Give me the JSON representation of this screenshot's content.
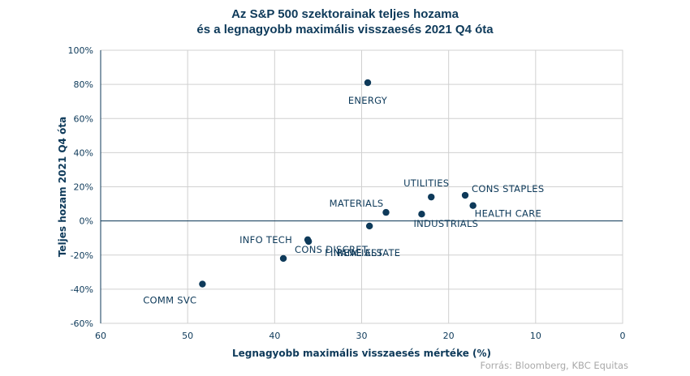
{
  "chart_data": {
    "type": "scatter",
    "title": "Az S&P 500 szektorainak teljes hozama",
    "subtitle": "és a legnagyobb maximális visszaesés 2021 Q4 óta",
    "xlabel": "Legnagyobb maximális visszaesés mértéke  (%)",
    "ylabel": "Teljes hozam 2021 Q4 óta",
    "xlim": [
      60,
      0
    ],
    "ylim": [
      -60,
      100
    ],
    "x_reversed": true,
    "grid": true,
    "x_ticks": [
      "60",
      "50",
      "40",
      "30",
      "20",
      "10",
      "0"
    ],
    "y_ticks": [
      "100%",
      "80%",
      "60%",
      "40%",
      "20%",
      "0%",
      "-20%",
      "-40%",
      "-60%"
    ],
    "marker_color": "#0e3a5a",
    "points": [
      {
        "label": "ENERGY",
        "x": 29.3,
        "y": 81
      },
      {
        "label": "UTILITIES",
        "x": 22.0,
        "y": 14
      },
      {
        "label": "CONS STAPLES",
        "x": 18.1,
        "y": 15
      },
      {
        "label": "MATERIALS",
        "x": 27.2,
        "y": 5
      },
      {
        "label": "INDUSTRIALS",
        "x": 23.1,
        "y": 4
      },
      {
        "label": "HEALTH CARE",
        "x": 17.2,
        "y": 9
      },
      {
        "label": "REAL ESTATE",
        "x": 29.1,
        "y": -3
      },
      {
        "label": "FINANCIALS",
        "x": 36.1,
        "y": -12
      },
      {
        "label": "INFO TECH",
        "x": 36.2,
        "y": -11
      },
      {
        "label": "CONS DISCRET",
        "x": 39.0,
        "y": -22
      },
      {
        "label": "COMM SVC",
        "x": 48.3,
        "y": -37
      }
    ]
  },
  "source": "Forrás: Bloomberg, KBC Equitas"
}
